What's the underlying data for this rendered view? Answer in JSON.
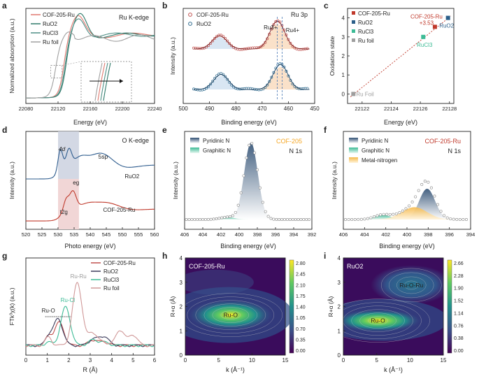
{
  "figure": {
    "panel_letters": [
      "a",
      "b",
      "c",
      "d",
      "e",
      "f",
      "g",
      "h",
      "i"
    ]
  },
  "chart_data": [
    {
      "panel": "a",
      "type": "line",
      "title": "Ru K-edge",
      "xlabel": "Energy (eV)",
      "ylabel": "Normalized absorption (a.u.)",
      "xlim": [
        22080,
        22240
      ],
      "xticks": [
        22080,
        22120,
        22160,
        22200,
        22240
      ],
      "legend": "top-left",
      "series": [
        {
          "name": "COF-205-Ru",
          "color": "#e0796f",
          "edge": 22127,
          "peak": [
            22145,
            1.28
          ]
        },
        {
          "name": "RuO2",
          "color": "#2f7a6a",
          "edge": 22130,
          "peak": [
            22148,
            1.34
          ]
        },
        {
          "name": "RuCl3",
          "color": "#4f8f86",
          "edge": 22129,
          "peak": [
            22146,
            1.3
          ]
        },
        {
          "name": "Ru foil",
          "color": "#a0a0a0",
          "edge": 22117,
          "peak": [
            22133,
            1.08
          ]
        }
      ]
    },
    {
      "panel": "b",
      "type": "scatter",
      "title": "Ru 3p",
      "xlabel": "Binding energy (eV)",
      "ylabel": "Intensity (a.u.)",
      "xlim": [
        500,
        450
      ],
      "xticks": [
        500,
        490,
        480,
        470,
        460,
        450
      ],
      "annotations": [
        "Ru3+",
        "Ru4+"
      ],
      "series": [
        {
          "name": "COF-205-Ru",
          "color": "#c0504d",
          "peaks": [
            [
              486.2,
              0.45
            ],
            [
              464.2,
              0.95
            ]
          ]
        },
        {
          "name": "RuO2",
          "color": "#2e6a8e",
          "peaks": [
            [
              485.6,
              0.45
            ],
            [
              463.0,
              0.75
            ]
          ]
        }
      ]
    },
    {
      "panel": "c",
      "type": "scatter",
      "xlabel": "Energy (eV)",
      "ylabel": "Oxidation state",
      "xlim": [
        22121,
        22128.3
      ],
      "ylim": [
        -0.5,
        4.5
      ],
      "xticks": [
        22122,
        22124,
        22126,
        22128
      ],
      "yticks": [
        0,
        1,
        2,
        3,
        4
      ],
      "series": [
        {
          "name": "COF-205-Ru",
          "color": "#c0392b",
          "x": 22127.0,
          "y": 3.53,
          "label": "COF-205-Ru",
          "label2": "+3.53"
        },
        {
          "name": "RuO2",
          "color": "#2c5f8a",
          "x": 22127.9,
          "y": 4.0,
          "label": "RuO2"
        },
        {
          "name": "RuCl3",
          "color": "#3dbb96",
          "x": 22126.2,
          "y": 3.0,
          "label": "RuCl3"
        },
        {
          "name": "Ru foil",
          "color": "#9e9e9e",
          "x": 22121.4,
          "y": 0.0,
          "label": "Ru Foil"
        }
      ]
    },
    {
      "panel": "d",
      "type": "line",
      "title": "O K-edge",
      "xlabel": "Photo energy (eV)",
      "ylabel": "Intensity (a.u.)",
      "xlim": [
        520,
        560
      ],
      "xticks": [
        520,
        525,
        530,
        535,
        540,
        545,
        550,
        555,
        560
      ],
      "shaded": [
        530,
        536.5
      ],
      "annotations": [
        "4d",
        "5sp",
        "eg",
        "t2g"
      ],
      "series": [
        {
          "name": "RuO2",
          "color": "#2e5c8e"
        },
        {
          "name": "COF-205-Ru",
          "color": "#c0392b"
        }
      ]
    },
    {
      "panel": "e",
      "type": "scatter",
      "title": "COF-205",
      "subtitle": "N 1s",
      "xlabel": "Binding energy (eV)",
      "ylabel": "Intensity (a.u.)",
      "xlim": [
        406,
        392
      ],
      "xticks": [
        406,
        404,
        402,
        400,
        398,
        396,
        394,
        392
      ],
      "series": [
        {
          "name": "Pyridinic N",
          "color": "#2f4f73",
          "center": 398.7,
          "height": 1.0
        },
        {
          "name": "Graphitic N",
          "color": "#6fd0a8",
          "center": 401.3,
          "height": 0.03
        }
      ]
    },
    {
      "panel": "f",
      "type": "scatter",
      "title": "COF-205-Ru",
      "subtitle": "N 1s",
      "xlabel": "Binding energy (eV)",
      "ylabel": "Intensity (a.u.)",
      "xlim": [
        406,
        394
      ],
      "xticks": [
        406,
        404,
        402,
        400,
        398,
        396,
        394
      ],
      "series": [
        {
          "name": "Pyridinic N",
          "color": "#2f4f73",
          "center": 398.1,
          "height": 0.55
        },
        {
          "name": "Graphitic N",
          "color": "#6fd0a8",
          "center": 402.3,
          "height": 0.08
        },
        {
          "name": "Metal-nitrogen",
          "color": "#f7c86a",
          "center": 399.3,
          "height": 0.22
        }
      ]
    },
    {
      "panel": "g",
      "type": "line",
      "xlabel": "R (Å)",
      "ylabel": "FTk³χ(k) (a.u.)",
      "xlim": [
        0,
        6
      ],
      "xticks": [
        0,
        1,
        2,
        3,
        4,
        5,
        6
      ],
      "legend": "top-right",
      "annotations": [
        "Ru-Ru",
        "Ru-Cl",
        "Ru-O"
      ],
      "series": [
        {
          "name": "COF-205-Ru",
          "color": "#c0504d",
          "peak": [
            1.55,
            0.33
          ]
        },
        {
          "name": "RuO2",
          "color": "#3a3a5a",
          "peak": [
            1.5,
            0.38
          ]
        },
        {
          "name": "RuCl3",
          "color": "#3dbb96",
          "peak": [
            1.85,
            0.55
          ]
        },
        {
          "name": "Ru foil",
          "color": "#d09898",
          "peak": [
            2.4,
            0.9
          ]
        }
      ]
    },
    {
      "panel": "h",
      "type": "heatmap",
      "title": "COF-205-Ru",
      "xlabel": "k (Å⁻¹)",
      "ylabel": "R+α (Å)",
      "xlim": [
        0,
        15
      ],
      "ylim": [
        0,
        4
      ],
      "xticks": [
        0,
        5,
        10,
        15
      ],
      "yticks": [
        0,
        1,
        2,
        3,
        4
      ],
      "colorbar": [
        "2.80",
        "2.45",
        "2.10",
        "1.75",
        "1.40",
        "1.05",
        "0.70",
        "0.35",
        "0.00"
      ],
      "features": [
        {
          "label": "Ru-O",
          "k": 6.8,
          "r": 1.65
        }
      ]
    },
    {
      "panel": "i",
      "type": "heatmap",
      "title": "RuO2",
      "xlabel": "k (Å⁻¹)",
      "ylabel": "R+α (Å)",
      "xlim": [
        0,
        15
      ],
      "ylim": [
        0,
        4
      ],
      "xticks": [
        0,
        5,
        10,
        15
      ],
      "yticks": [
        0,
        1,
        2,
        3,
        4
      ],
      "colorbar": [
        "2.66",
        "2.28",
        "1.90",
        "1.52",
        "1.14",
        "0.76",
        "0.38",
        "0.00"
      ],
      "features": [
        {
          "label": "Ru-O",
          "k": 5.2,
          "r": 1.42
        },
        {
          "label": "Ru-O-Ru",
          "k": 10.2,
          "r": 2.88
        }
      ]
    }
  ]
}
